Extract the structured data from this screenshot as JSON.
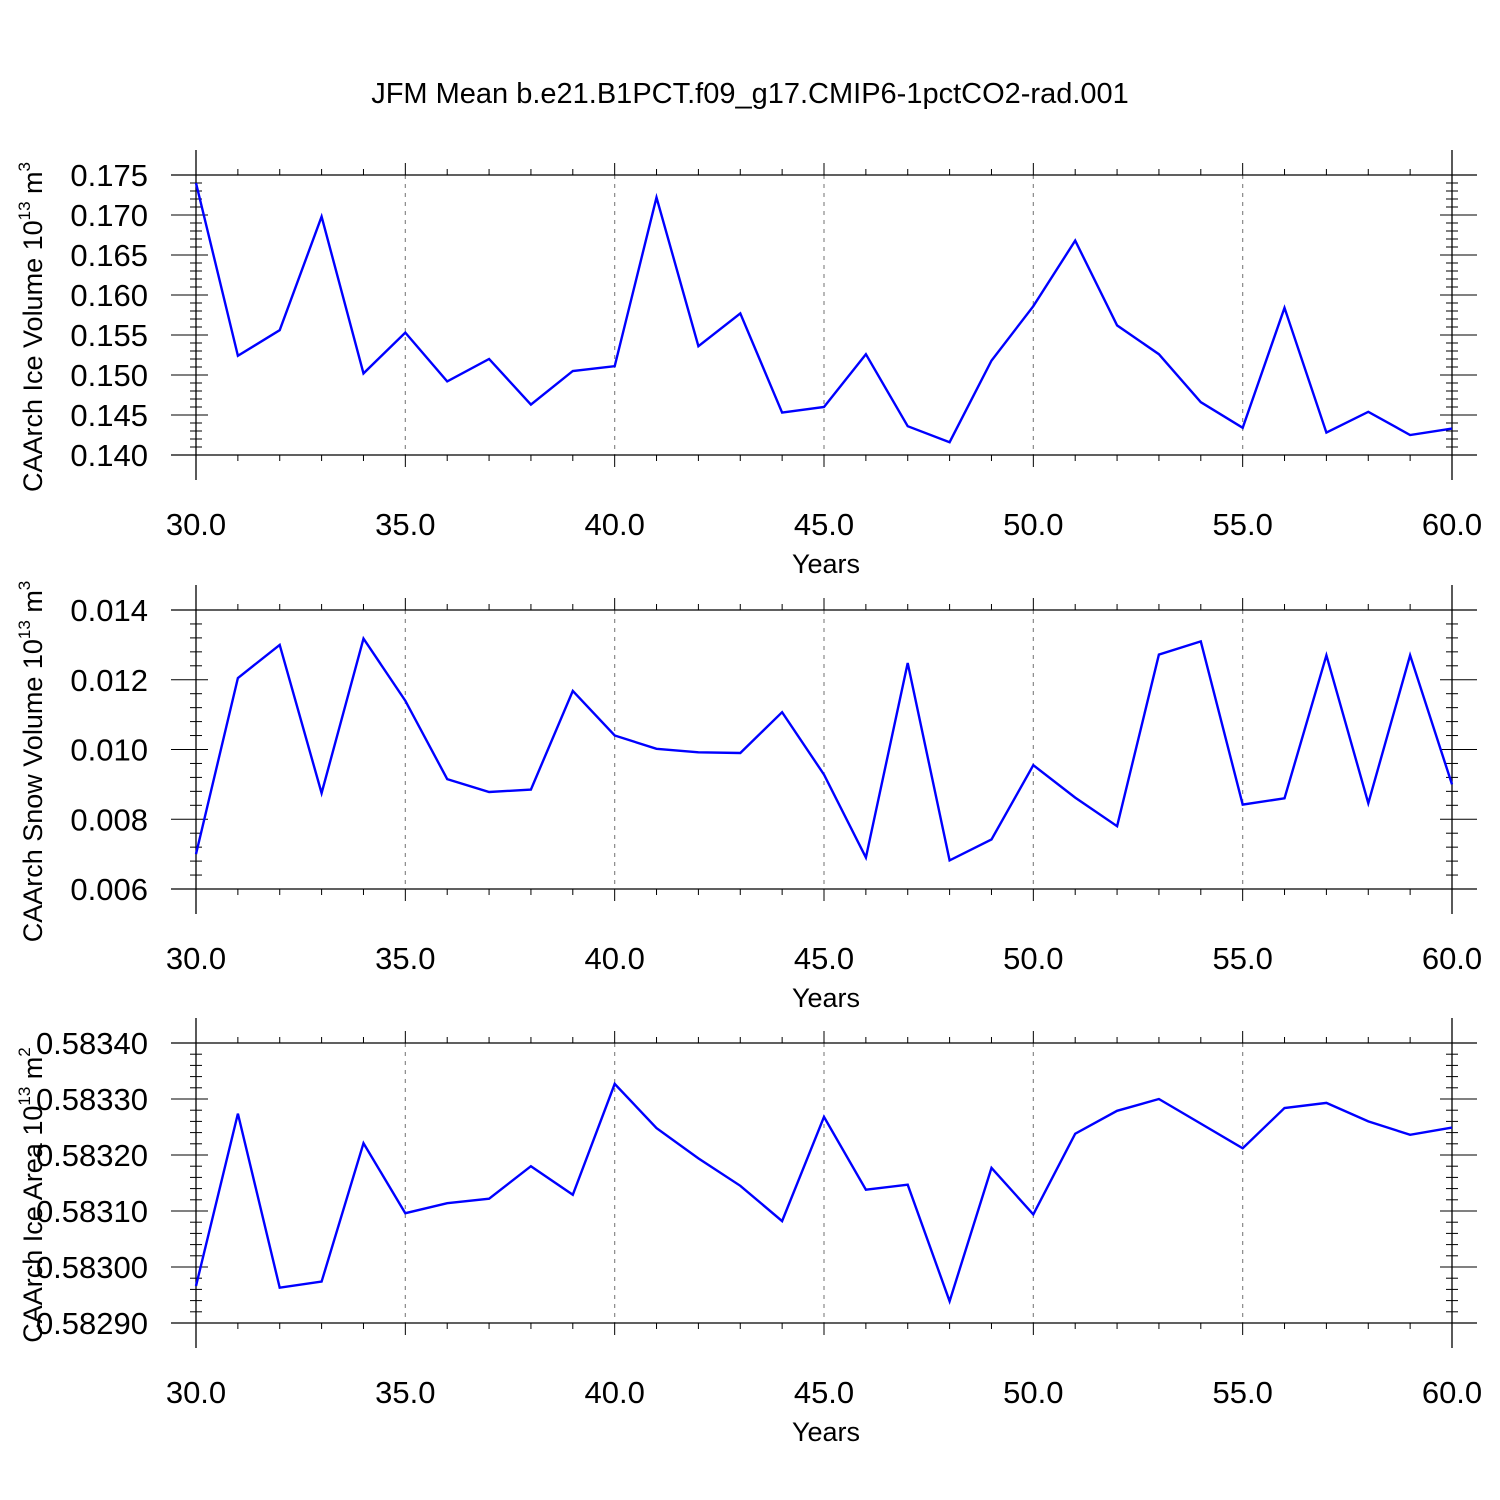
{
  "title": "JFM Mean b.e21.B1PCT.f09_g17.CMIP6-1pctCO2-rad.001",
  "colors": {
    "line": "#0000ff",
    "axis": "#000000",
    "grid": "#888888",
    "background": "#ffffff"
  },
  "chart_data": [
    {
      "type": "line",
      "ylabel": "CAArch Ice Volume 10",
      "ylabel_exp": "13",
      "ylabel_unit": "m",
      "ylabel_unit_exp": "3",
      "xlabel": "Years",
      "xlim": [
        30,
        60
      ],
      "ylim": [
        0.14,
        0.175
      ],
      "xticks": [
        "30.0",
        "35.0",
        "40.0",
        "45.0",
        "50.0",
        "55.0",
        "60.0"
      ],
      "yticks": [
        "0.140",
        "0.145",
        "0.150",
        "0.155",
        "0.160",
        "0.165",
        "0.170",
        "0.175"
      ],
      "grid": "vertical dashed at major x ticks",
      "x": [
        30,
        31,
        32,
        33,
        34,
        35,
        36,
        37,
        38,
        39,
        40,
        41,
        42,
        43,
        44,
        45,
        46,
        47,
        48,
        49,
        50,
        51,
        52,
        53,
        54,
        55,
        56,
        57,
        58,
        59,
        60
      ],
      "series": [
        {
          "values": [
            0.174,
            0.1524,
            0.1556,
            0.1698,
            0.1502,
            0.1553,
            0.1492,
            0.152,
            0.1463,
            0.1505,
            0.1511,
            0.1722,
            0.1536,
            0.1577,
            0.1453,
            0.146,
            0.1526,
            0.1436,
            0.1416,
            0.1518,
            0.1586,
            0.1668,
            0.1562,
            0.1526,
            0.1466,
            0.1434,
            0.1584,
            0.1428,
            0.1454,
            0.1425,
            0.1433
          ]
        }
      ]
    },
    {
      "type": "line",
      "ylabel": "CAArch Snow Volume 10",
      "ylabel_exp": "13",
      "ylabel_unit": "m",
      "ylabel_unit_exp": "3",
      "xlabel": "Years",
      "xlim": [
        30,
        60
      ],
      "ylim": [
        0.006,
        0.014
      ],
      "xticks": [
        "30.0",
        "35.0",
        "40.0",
        "45.0",
        "50.0",
        "55.0",
        "60.0"
      ],
      "yticks": [
        "0.006",
        "0.008",
        "0.010",
        "0.012",
        "0.014"
      ],
      "grid": "vertical dashed at major x ticks",
      "x": [
        30,
        31,
        32,
        33,
        34,
        35,
        36,
        37,
        38,
        39,
        40,
        41,
        42,
        43,
        44,
        45,
        46,
        47,
        48,
        49,
        50,
        51,
        52,
        53,
        54,
        55,
        56,
        57,
        58,
        59,
        60
      ],
      "series": [
        {
          "values": [
            0.007,
            0.01205,
            0.013,
            0.00875,
            0.01318,
            0.0114,
            0.00915,
            0.00878,
            0.00885,
            0.01168,
            0.0104,
            0.01002,
            0.00992,
            0.0099,
            0.01107,
            0.00928,
            0.0069,
            0.01248,
            0.00682,
            0.00742,
            0.00955,
            0.00862,
            0.0078,
            0.01272,
            0.0131,
            0.00842,
            0.0086,
            0.0127,
            0.00846,
            0.0127,
            0.009
          ]
        }
      ]
    },
    {
      "type": "line",
      "ylabel": "CAArch Ice Area 10",
      "ylabel_exp": "13",
      "ylabel_unit": "m",
      "ylabel_unit_exp": "2",
      "xlabel": "Years",
      "xlim": [
        30,
        60
      ],
      "ylim": [
        0.5829,
        0.5834
      ],
      "xticks": [
        "30.0",
        "35.0",
        "40.0",
        "45.0",
        "50.0",
        "55.0",
        "60.0"
      ],
      "yticks": [
        "0.58290",
        "0.58300",
        "0.58310",
        "0.58320",
        "0.58330",
        "0.58340"
      ],
      "grid": "vertical dashed at major x ticks",
      "x": [
        30,
        31,
        32,
        33,
        34,
        35,
        36,
        37,
        38,
        39,
        40,
        41,
        42,
        43,
        44,
        45,
        46,
        47,
        48,
        49,
        50,
        51,
        52,
        53,
        54,
        55,
        56,
        57,
        58,
        59,
        60
      ],
      "series": [
        {
          "values": [
            0.582966,
            0.583274,
            0.582963,
            0.582974,
            0.583221,
            0.583096,
            0.583114,
            0.583122,
            0.58318,
            0.583129,
            0.583327,
            0.583248,
            0.583194,
            0.583145,
            0.583082,
            0.583268,
            0.583138,
            0.583147,
            0.582939,
            0.583177,
            0.583094,
            0.583238,
            0.583279,
            0.5833,
            0.583256,
            0.583212,
            0.583284,
            0.583293,
            0.58326,
            0.583236,
            0.583249
          ]
        }
      ]
    }
  ]
}
